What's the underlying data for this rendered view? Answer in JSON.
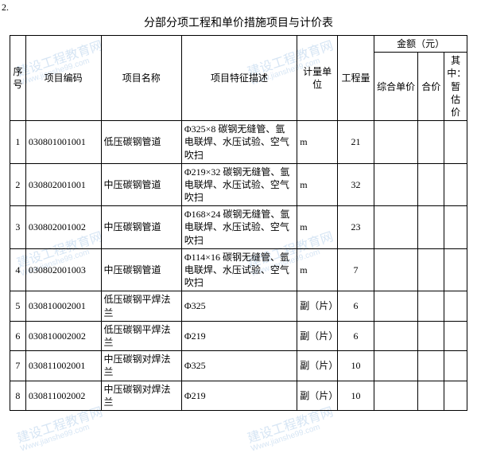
{
  "page_label": "2.",
  "title": "分部分项工程和单价措施项目与计价表",
  "watermark": {
    "main": "建设工程教育网",
    "sub": "Www.jianshe99.com"
  },
  "headers": {
    "seq": "序号",
    "code": "项目编码",
    "name": "项目名称",
    "desc": "项目特征描述",
    "unit": "计量单位",
    "qty": "工程量",
    "amount_group": "金额（元）",
    "unit_price": "综合单价",
    "total": "合价",
    "temp": "其中：暂估价"
  },
  "rows": [
    {
      "seq": "1",
      "code": "030801001001",
      "name": "低压碳钢管道",
      "desc": "Φ325×8 碳钢无缝管、氩电联焊、水压试验、空气吹扫",
      "unit": "m",
      "qty": "21"
    },
    {
      "seq": "2",
      "code": "030802001001",
      "name": "中压碳钢管道",
      "desc": "Φ219×32 碳钢无缝管、氩电联焊、水压试验、空气吹扫",
      "unit": "m",
      "qty": "32"
    },
    {
      "seq": "3",
      "code": "030802001002",
      "name": "中压碳钢管道",
      "desc": "Φ168×24 碳钢无缝管、氩电联焊、水压试验、空气吹扫",
      "unit": "m",
      "qty": "23"
    },
    {
      "seq": "4",
      "code": "030802001003",
      "name": "中压碳钢管道",
      "desc": "Φ114×16 碳钢无缝管、氩电联焊、水压试验、空气吹扫",
      "unit": "m",
      "qty": "7"
    },
    {
      "seq": "5",
      "code": "030810002001",
      "name": "低压碳钢平焊法兰",
      "desc": "Φ325",
      "unit": "副（片）",
      "qty": "6"
    },
    {
      "seq": "6",
      "code": "030810002002",
      "name": "低压碳钢平焊法兰",
      "desc": "Φ219",
      "unit": "副（片）",
      "qty": "6"
    },
    {
      "seq": "7",
      "code": "030811002001",
      "name": "中压碳钢对焊法兰",
      "desc": "Φ325",
      "unit": "副（片）",
      "qty": "10"
    },
    {
      "seq": "8",
      "code": "030811002002",
      "name": "中压碳钢对焊法兰",
      "desc": "Φ219",
      "unit": "副（片）",
      "qty": "10"
    }
  ]
}
